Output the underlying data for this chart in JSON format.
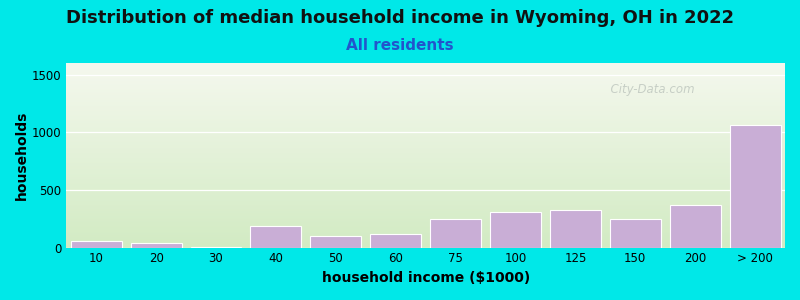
{
  "title": "Distribution of median household income in Wyoming, OH in 2022",
  "subtitle": "All residents",
  "xlabel": "household income ($1000)",
  "ylabel": "households",
  "categories": [
    "10",
    "20",
    "30",
    "40",
    "50",
    "60",
    "75",
    "100",
    "125",
    "150",
    "200",
    "> 200"
  ],
  "values": [
    60,
    38,
    2,
    185,
    100,
    120,
    250,
    305,
    330,
    245,
    370,
    1060
  ],
  "bar_color": "#c9aed6",
  "bar_edge_color": "#ffffff",
  "ylim": [
    0,
    1600
  ],
  "yticks": [
    0,
    500,
    1000,
    1500
  ],
  "background_outer": "#00e8e8",
  "background_plot_top": "#f5f7ee",
  "background_plot_bottom": "#ddf0d0",
  "title_fontsize": 13,
  "subtitle_fontsize": 11,
  "subtitle_color": "#2255cc",
  "axis_label_fontsize": 10,
  "watermark_text": "  City-Data.com",
  "watermark_color": "#c0c8c0"
}
